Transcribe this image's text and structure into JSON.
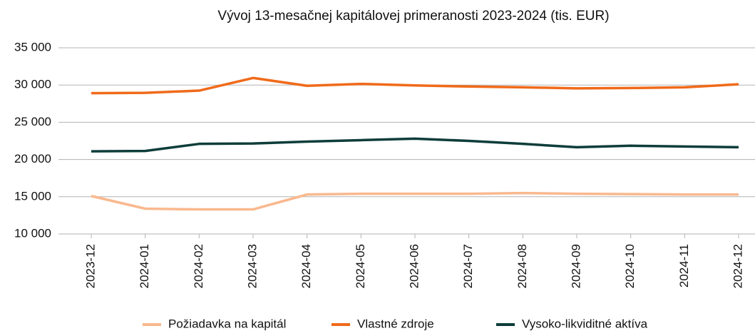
{
  "chart_data": {
    "type": "line",
    "title": "Vývoj 13-mesačnej kapitálovej primeranosti 2023-2024 (tis. EUR)",
    "categories": [
      "2023-12",
      "2024-01",
      "2024-02",
      "2024-03",
      "2024-04",
      "2024-05",
      "2024-06",
      "2024-07",
      "2024-08",
      "2024-09",
      "2024-10",
      "2024-11",
      "2024-12"
    ],
    "series": [
      {
        "name": "Požiadavka na kapitál",
        "color": "#f9b88e",
        "values": [
          15100,
          13400,
          13300,
          13300,
          15300,
          15400,
          15400,
          15400,
          15500,
          15400,
          15350,
          15300,
          15300
        ]
      },
      {
        "name": "Vlastné zdroje",
        "color": "#f06a1a",
        "values": [
          28900,
          28950,
          29250,
          30950,
          29900,
          30150,
          29950,
          29800,
          29700,
          29550,
          29600,
          29700,
          30100
        ]
      },
      {
        "name": "Vysoko-likviditné aktíva",
        "color": "#0e3d3a",
        "values": [
          21100,
          21150,
          22100,
          22150,
          22400,
          22600,
          22800,
          22500,
          22100,
          21650,
          21850,
          21750,
          21650
        ]
      }
    ],
    "ylim": [
      10000,
      35000
    ],
    "yticks": [
      {
        "value": 10000,
        "label": "10 000"
      },
      {
        "value": 15000,
        "label": "15 000"
      },
      {
        "value": 20000,
        "label": "20 000"
      },
      {
        "value": 25000,
        "label": "25 000"
      },
      {
        "value": 30000,
        "label": "30 000"
      },
      {
        "value": 35000,
        "label": "35 000"
      }
    ],
    "grid": true,
    "legend": "bottom"
  }
}
